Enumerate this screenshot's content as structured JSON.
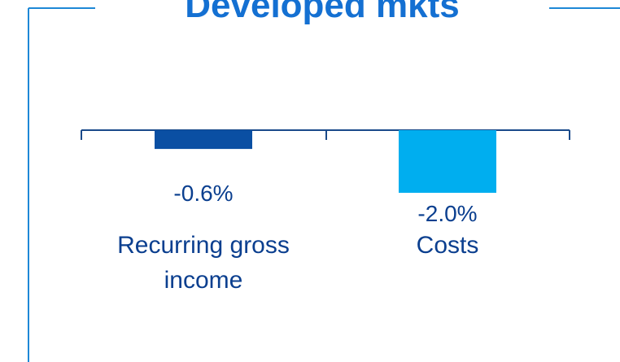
{
  "chart_data": {
    "type": "bar",
    "title": "Developed mkts",
    "categories": [
      "Recurring gross income",
      "Costs"
    ],
    "values": [
      -0.6,
      -2.0
    ],
    "value_labels": [
      "-0.6%",
      "-2.0%"
    ],
    "colors": [
      "#0a4fa3",
      "#00aeef"
    ]
  }
}
